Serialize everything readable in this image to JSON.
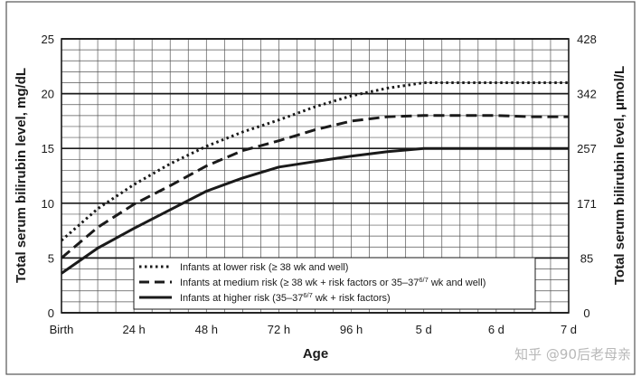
{
  "chart_data": {
    "type": "line",
    "xlabel": "Age",
    "ylabel_left": "Total serum bilirubin level, mg/dL",
    "ylabel_right": "Total serum bilirubin level, μmol/L",
    "x_categories": [
      "Birth",
      "24 h",
      "48 h",
      "72 h",
      "96 h",
      "5 d",
      "6 d",
      "7 d"
    ],
    "x_hours": [
      0,
      24,
      48,
      72,
      96,
      120,
      144,
      168
    ],
    "ylim": [
      0,
      25
    ],
    "y_ticks_left": [
      "0",
      "5",
      "10",
      "15",
      "20",
      "25"
    ],
    "y_ticks_right": [
      {
        "label": "0",
        "at": 0
      },
      {
        "label": "85",
        "at": 5
      },
      {
        "label": "171",
        "at": 10
      },
      {
        "label": "257",
        "at": 15
      },
      {
        "label": "342",
        "at": 20
      },
      {
        "label": "428",
        "at": 25
      }
    ],
    "grid": true,
    "legend_position": "bottom-center",
    "series": [
      {
        "name": "Infants at lower risk (≥ 38 wk and well)",
        "style": "dotted",
        "x": [
          0,
          12,
          24,
          36,
          48,
          60,
          72,
          84,
          96,
          108,
          120,
          132,
          144,
          156,
          168
        ],
        "y": [
          6.6,
          9.5,
          11.7,
          13.6,
          15.2,
          16.5,
          17.6,
          18.8,
          19.8,
          20.5,
          21.0,
          21.0,
          21.0,
          21.0,
          21.0
        ]
      },
      {
        "name": "Infants at medium risk (≥ 38 wk + risk factors or 35–37 6/7 wk and well)",
        "style": "dashed",
        "x": [
          0,
          12,
          24,
          36,
          48,
          60,
          72,
          84,
          96,
          108,
          120,
          132,
          144,
          156,
          168
        ],
        "y": [
          5.0,
          7.8,
          9.9,
          11.6,
          13.4,
          14.8,
          15.7,
          16.7,
          17.5,
          17.9,
          18.0,
          18.0,
          18.0,
          17.9,
          17.9
        ]
      },
      {
        "name": "Infants at higher risk (35–37 6/7 wk + risk factors)",
        "style": "solid",
        "x": [
          0,
          12,
          24,
          36,
          48,
          60,
          72,
          84,
          96,
          108,
          120,
          132,
          144,
          156,
          168
        ],
        "y": [
          3.6,
          5.9,
          7.7,
          9.4,
          11.1,
          12.3,
          13.3,
          13.8,
          14.3,
          14.7,
          15.0,
          15.0,
          15.0,
          15.0,
          15.0
        ]
      }
    ]
  },
  "legend": {
    "lower": {
      "text": "Infants at lower risk (≥ 38 wk and well)"
    },
    "medium": {
      "pre": "Infants at medium risk (≥ 38 wk + risk factors or 35–37",
      "sup": "6/7",
      "post": " wk and well)"
    },
    "higher": {
      "pre": "Infants at higher risk (35–37",
      "sup": "6/7",
      "post": " wk + risk factors)"
    }
  },
  "watermark": "知乎 @90后老母亲"
}
